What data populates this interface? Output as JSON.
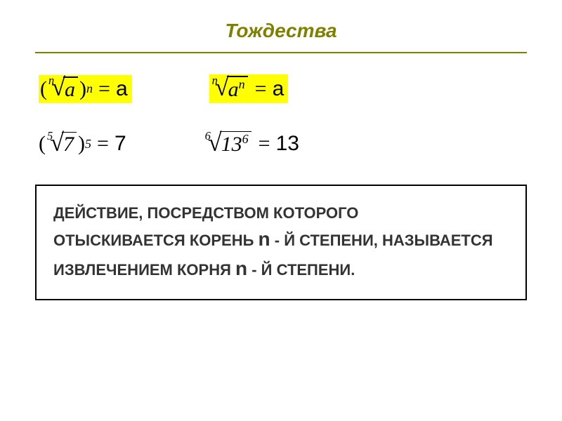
{
  "title": "Тождества",
  "identities": {
    "left": {
      "index": "n",
      "radicand": "a",
      "outer_exp": "n",
      "rhs": "a"
    },
    "right": {
      "index": "n",
      "radicand_base": "a",
      "radicand_exp": "n",
      "rhs": "a"
    }
  },
  "examples": {
    "left": {
      "index": "5",
      "radicand": "7",
      "outer_exp": "5",
      "rhs": "7"
    },
    "right": {
      "index": "6",
      "radicand_base": "13",
      "radicand_exp": "6",
      "rhs": "13"
    }
  },
  "textbox": {
    "line1a": "ДЕЙСТВИЕ, ПОСРЕДСТВОМ КОТОРОГО",
    "line2a": "ОТЫСКИВАЕТСЯ КОРЕНЬ ",
    "n1": "n",
    "line2b": " - Й СТЕПЕНИ, НАЗЫВАЕТСЯ",
    "line3a": "ИЗВЛЕЧЕНИЕМ КОРНЯ ",
    "n2": "n",
    "line3b": " - Й СТЕПЕНИ."
  },
  "colors": {
    "accent": "#808000",
    "highlight": "#ffff00",
    "text": "#333333",
    "border": "#000000",
    "background": "#ffffff"
  },
  "fonts": {
    "title_size": 28,
    "formula_size": 30,
    "body_size": 22
  }
}
